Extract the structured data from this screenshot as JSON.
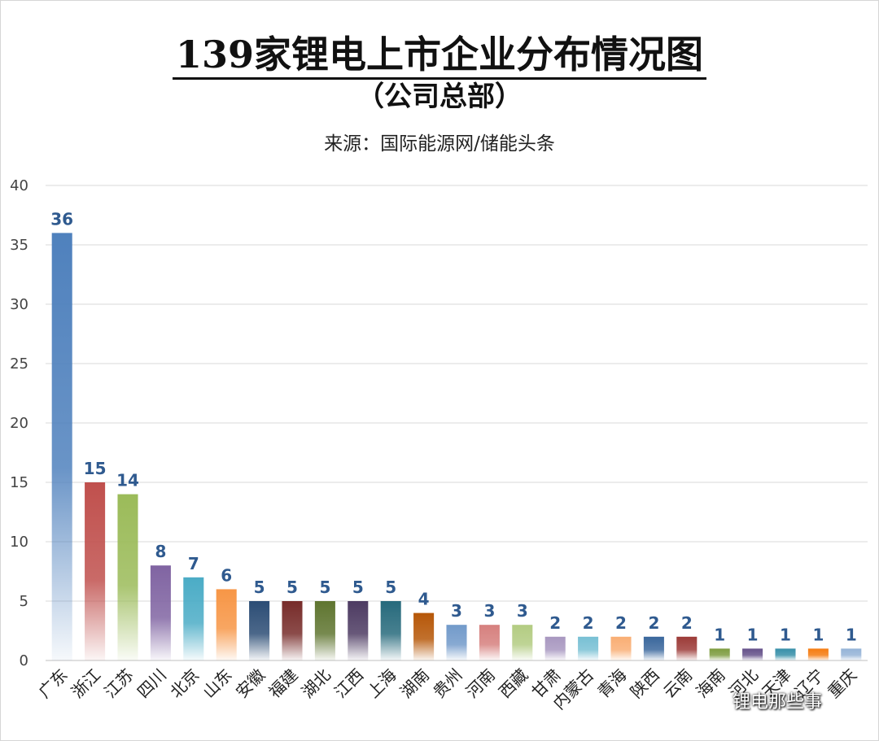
{
  "header": {
    "title": "139家锂电上市企业分布情况图",
    "subtitle": "（公司总部）",
    "source": "来源：国际能源网/储能头条"
  },
  "watermark": {
    "text": "锂电那些事",
    "icon": "wechat-icon"
  },
  "chart_data": {
    "type": "bar",
    "title": "139家锂电上市企业分布情况图",
    "subtitle": "（公司总部）",
    "xlabel": "",
    "ylabel": "",
    "ylim": [
      0,
      40
    ],
    "yticks": [
      0,
      5,
      10,
      15,
      20,
      25,
      30,
      35,
      40
    ],
    "grid": true,
    "legend": "none",
    "categories": [
      "广东",
      "浙江",
      "江苏",
      "四川",
      "北京",
      "山东",
      "安徽",
      "福建",
      "湖北",
      "江西",
      "上海",
      "湖南",
      "贵州",
      "河南",
      "西藏",
      "甘肃",
      "内蒙古",
      "青海",
      "陕西",
      "云南",
      "海南",
      "河北",
      "天津",
      "辽宁",
      "重庆"
    ],
    "values": [
      36,
      15,
      14,
      8,
      7,
      6,
      5,
      5,
      5,
      5,
      5,
      4,
      3,
      3,
      3,
      2,
      2,
      2,
      2,
      2,
      1,
      1,
      1,
      1,
      1
    ],
    "colors": [
      "#4f81bd",
      "#c0504d",
      "#9bbb59",
      "#8064a2",
      "#4bacc6",
      "#f79646",
      "#2c4d75",
      "#772c2a",
      "#5f7530",
      "#4d3b62",
      "#276a7c",
      "#b65708",
      "#729aca",
      "#d6807e",
      "#b3cc82",
      "#a897c0",
      "#78c0d4",
      "#f9ae74",
      "#3a679c",
      "#9c3b38",
      "#7d9c3f",
      "#65518a",
      "#3790a9",
      "#f57c11",
      "#95b3d7"
    ]
  }
}
